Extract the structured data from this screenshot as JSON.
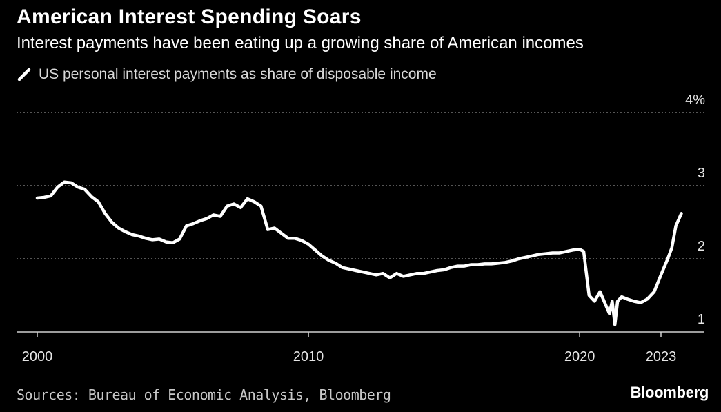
{
  "header": {
    "title": "American Interest Spending Soars",
    "subtitle": "Interest payments have been eating up a growing share of American incomes"
  },
  "footer": {
    "source": "Sources: Bureau of Economic Analysis, Bloomberg",
    "brand": "Bloomberg"
  },
  "colors": {
    "background": "#000000",
    "line": "#ffffff",
    "grid": "#8a8a8a",
    "text": "#ffffff"
  },
  "legend_icon": "diagonal-line-icon",
  "chart_data": {
    "type": "line",
    "title": "American Interest Spending Soars",
    "subtitle": "Interest payments have been eating up a growing share of American incomes",
    "xlabel": "",
    "ylabel": "",
    "xlim": [
      2000,
      2023.7
    ],
    "ylim": [
      1,
      4
    ],
    "y_ticks": [
      1,
      2,
      3,
      4
    ],
    "y_tick_labels": [
      "1",
      "2",
      "3",
      "4%"
    ],
    "x_ticks": [
      2000,
      2010,
      2020,
      2023
    ],
    "x_tick_labels": [
      "2000",
      "2010",
      "2020",
      "2023"
    ],
    "grid": "horizontal dotted",
    "legend_position": "top-left",
    "series": [
      {
        "name": "US personal interest payments as share of disposable income",
        "x": [
          2000.0,
          2000.25,
          2000.5,
          2000.75,
          2001.0,
          2001.25,
          2001.5,
          2001.75,
          2002.0,
          2002.25,
          2002.5,
          2002.75,
          2003.0,
          2003.25,
          2003.5,
          2003.75,
          2004.0,
          2004.25,
          2004.5,
          2004.75,
          2005.0,
          2005.25,
          2005.5,
          2005.75,
          2006.0,
          2006.25,
          2006.5,
          2006.75,
          2007.0,
          2007.25,
          2007.5,
          2007.75,
          2008.0,
          2008.25,
          2008.5,
          2008.75,
          2009.0,
          2009.25,
          2009.5,
          2009.75,
          2010.0,
          2010.25,
          2010.5,
          2010.75,
          2011.0,
          2011.25,
          2011.5,
          2011.75,
          2012.0,
          2012.25,
          2012.5,
          2012.75,
          2013.0,
          2013.25,
          2013.5,
          2013.75,
          2014.0,
          2014.25,
          2014.5,
          2014.75,
          2015.0,
          2015.25,
          2015.5,
          2015.75,
          2016.0,
          2016.25,
          2016.5,
          2016.75,
          2017.0,
          2017.25,
          2017.5,
          2017.75,
          2018.0,
          2018.25,
          2018.5,
          2018.75,
          2019.0,
          2019.25,
          2019.5,
          2019.75,
          2020.0,
          2020.15,
          2020.35,
          2020.55,
          2020.75,
          2020.95,
          2021.1,
          2021.2,
          2021.3,
          2021.4,
          2021.55,
          2021.75,
          2022.0,
          2022.25,
          2022.5,
          2022.75,
          2023.0,
          2023.25,
          2023.4,
          2023.55,
          2023.75
        ],
        "y": [
          2.83,
          2.84,
          2.86,
          2.98,
          3.05,
          3.04,
          2.98,
          2.95,
          2.85,
          2.78,
          2.62,
          2.5,
          2.42,
          2.37,
          2.33,
          2.31,
          2.28,
          2.26,
          2.27,
          2.23,
          2.22,
          2.27,
          2.45,
          2.48,
          2.52,
          2.55,
          2.6,
          2.58,
          2.72,
          2.75,
          2.7,
          2.82,
          2.78,
          2.72,
          2.4,
          2.42,
          2.35,
          2.28,
          2.28,
          2.25,
          2.2,
          2.12,
          2.04,
          1.98,
          1.94,
          1.88,
          1.86,
          1.84,
          1.82,
          1.8,
          1.78,
          1.8,
          1.74,
          1.8,
          1.76,
          1.78,
          1.8,
          1.8,
          1.82,
          1.84,
          1.85,
          1.88,
          1.9,
          1.9,
          1.92,
          1.92,
          1.93,
          1.93,
          1.94,
          1.95,
          1.97,
          2.0,
          2.02,
          2.04,
          2.06,
          2.07,
          2.08,
          2.08,
          2.1,
          2.12,
          2.13,
          2.1,
          1.5,
          1.42,
          1.55,
          1.38,
          1.25,
          1.42,
          1.1,
          1.42,
          1.48,
          1.45,
          1.42,
          1.4,
          1.45,
          1.55,
          1.78,
          2.0,
          2.15,
          2.45,
          2.62
        ]
      }
    ]
  }
}
